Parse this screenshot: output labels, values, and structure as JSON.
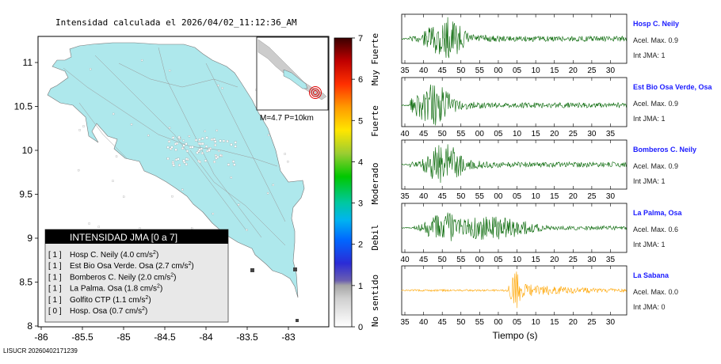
{
  "map": {
    "title": "Intensidad calculada el 2026/04/02_11:12:36_AM",
    "footer": "LISUCR 20260402171239",
    "y_ticks": [
      "11",
      "10.5",
      "10",
      "9.5",
      "9",
      "8.5",
      "8"
    ],
    "x_ticks": [
      "-86",
      "-85.5",
      "-85",
      "-84.5",
      "-84",
      "-83.5",
      "-83"
    ],
    "inset_label": "M=4.7 P=10km",
    "land_color": "#aee8ec",
    "sea_color": "#ffffff"
  },
  "colorbar": {
    "ticks": [
      "0",
      "1",
      "2",
      "3",
      "4",
      "5",
      "6",
      "7"
    ],
    "categories": [
      "No sentido",
      "Debil",
      "Moderado",
      "Fuerte",
      "Muy Fuerte"
    ]
  },
  "legend": {
    "title": "INTENSIDAD JMA [0 a 7]",
    "rows": [
      {
        "jma": "[ 1 ]",
        "name": "Hosp C. Neily (4.0 cm/s",
        "sup": "2",
        "close": ")"
      },
      {
        "jma": "[ 1 ]",
        "name": "Est Bio Osa Verde. Osa (2.7 cm/s",
        "sup": "2",
        "close": ")"
      },
      {
        "jma": "[ 1 ]",
        "name": "Bomberos C. Neily (2.0 cm/s",
        "sup": "2",
        "close": ")"
      },
      {
        "jma": "[ 1 ]",
        "name": "La Palma. Osa (1.8 cm/s",
        "sup": "2",
        "close": ")"
      },
      {
        "jma": "[ 1 ]",
        "name": "Golfito CTP (1.1 cm/s",
        "sup": "2",
        "close": ")"
      },
      {
        "jma": "[ 0 ]",
        "name": "Hosp. Osa (0.7 cm/s",
        "sup": "2",
        "close": ")"
      }
    ]
  },
  "chart_data": {
    "type": "line",
    "xlabel": "Tiempo (s)",
    "series": [
      {
        "name": "Hosp C. Neily",
        "acel": "Acel. Max. 0.9",
        "jma": "Int JMA: 1",
        "color": "#006400",
        "amp": 0.9,
        "peak": 47,
        "ticks": [
          "35",
          "40",
          "45",
          "50",
          "55",
          "00",
          "05",
          "10",
          "15",
          "20",
          "25",
          "30"
        ]
      },
      {
        "name": "Est Bio Osa Verde, Osa",
        "acel": "Acel. Max. 0.9",
        "jma": "Int JMA: 1",
        "color": "#006400",
        "amp": 0.9,
        "peak": 45,
        "ticks": [
          "40",
          "45",
          "50",
          "55",
          "00",
          "05",
          "10",
          "15",
          "20",
          "25",
          "30",
          "35"
        ]
      },
      {
        "name": "Bomberos C. Neily",
        "acel": "Acel. Max. 0.9",
        "jma": "Int JMA: 1",
        "color": "#006400",
        "amp": 0.9,
        "peak": 47,
        "ticks": [
          "35",
          "40",
          "45",
          "50",
          "55",
          "00",
          "05",
          "10",
          "15",
          "20",
          "25",
          "30"
        ]
      },
      {
        "name": "La Palma, Osa",
        "acel": "Acel. Max. 0.6",
        "jma": "Int JMA: 1",
        "color": "#006400",
        "amp": 0.6,
        "peak": 48,
        "ticks": [
          "40",
          "45",
          "50",
          "55",
          "00",
          "05",
          "10",
          "15",
          "20",
          "25",
          "30",
          "35"
        ]
      },
      {
        "name": "La Sabana",
        "acel": "Acel. Max. 0.0",
        "jma": "Int JMA: 0",
        "color": "#ffa500",
        "amp": 0.0,
        "peak": 70,
        "ticks": [
          "35",
          "40",
          "45",
          "50",
          "55",
          "00",
          "05",
          "10",
          "15",
          "20",
          "25",
          "30"
        ]
      }
    ]
  }
}
